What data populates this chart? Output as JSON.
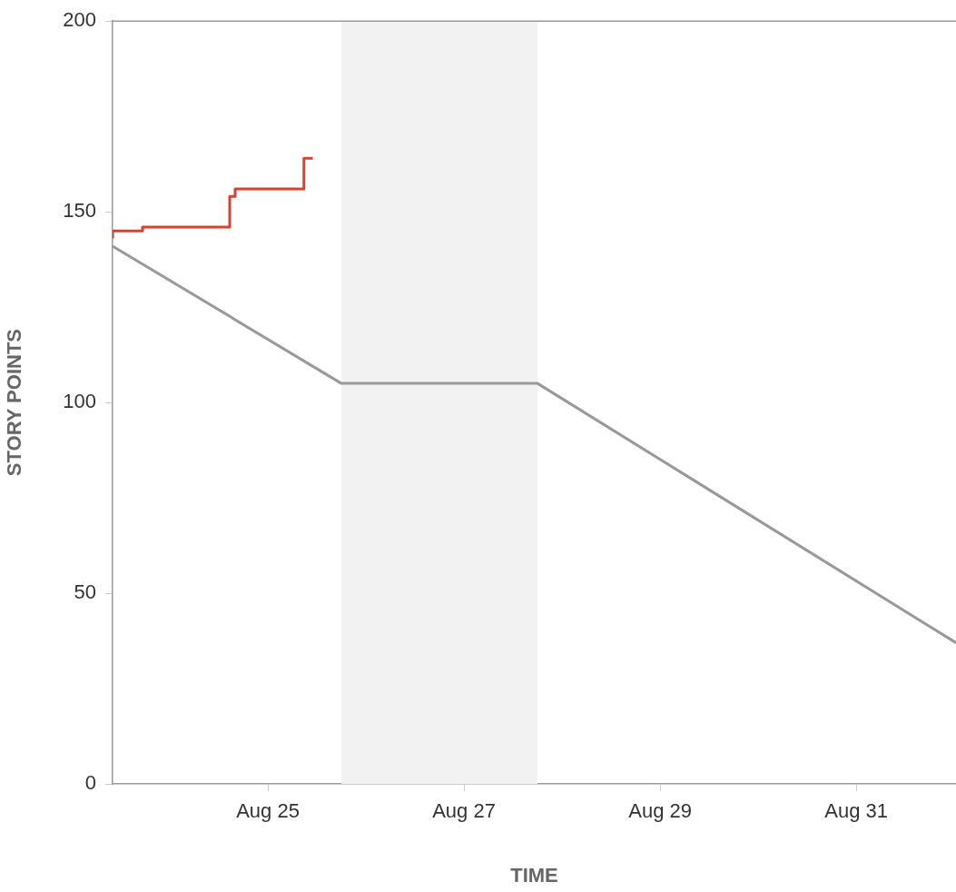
{
  "chart_data": {
    "type": "line",
    "xlabel": "TIME",
    "ylabel": "STORY POINTS",
    "xlim": [
      "--08-23T10:00",
      "--09-01T00:25"
    ],
    "xticks": [
      {
        "value": "--08-25",
        "label": "Aug 25"
      },
      {
        "value": "--08-27",
        "label": "Aug 27"
      },
      {
        "value": "--08-29",
        "label": "Aug 29"
      },
      {
        "value": "--08-31",
        "label": "Aug 31"
      }
    ],
    "ylim": [
      0,
      200
    ],
    "yticks": [
      0,
      50,
      100,
      150,
      200
    ],
    "grid": false,
    "legend": false,
    "marker": "none",
    "bands": [
      {
        "axis": "x",
        "from": "--08-25T18:00",
        "to": "--08-27T18:00",
        "color": "#f2f2f2"
      }
    ],
    "series": [
      {
        "type": "step",
        "color": "#d9412e",
        "x": [
          "--08-23T10:00",
          "--08-23T10:00",
          "--08-23T17:20",
          "--08-24T14:40",
          "--08-24T16:00",
          "--08-25T08:50",
          "--08-25T11:00"
        ],
        "values": [
          143,
          145,
          146,
          154,
          156,
          164,
          164
        ]
      },
      {
        "color": "#999999",
        "x": [
          "--08-23T10:00",
          "--08-25T18:00",
          "--08-27T18:00",
          "--09-01T00:25"
        ],
        "values": [
          141,
          105,
          105,
          37
        ]
      }
    ]
  }
}
